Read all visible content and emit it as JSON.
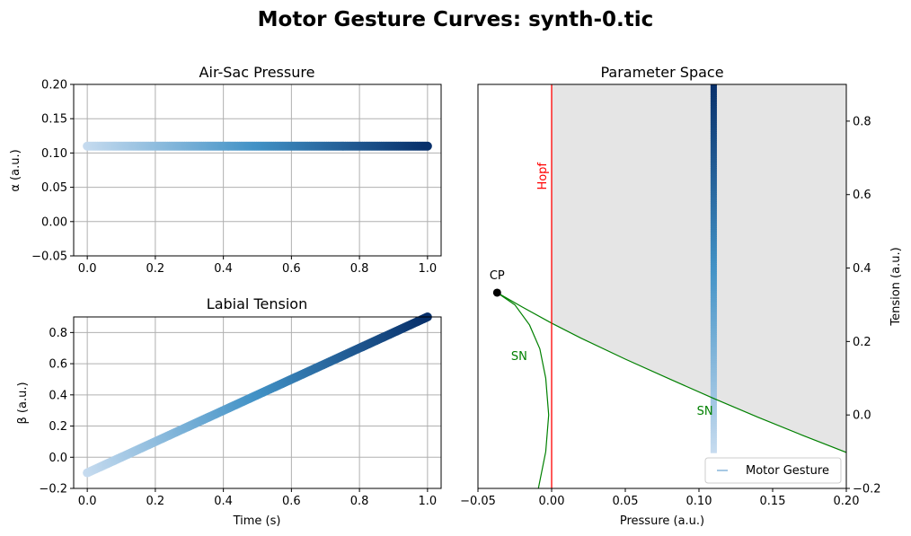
{
  "suptitle": "Motor Gesture Curves: synth-0.tic",
  "colors": {
    "grid": "#b0b0b0",
    "hopf": "#ff0000",
    "sn": "#008000",
    "region": "#e5e5e5",
    "cmap_start": "#c6dbef",
    "cmap_mid": "#4292c6",
    "cmap_end": "#08306b",
    "cp_point": "#000000",
    "legend_marker": "#a6c8e4"
  },
  "chart_data": [
    {
      "id": "air-sac",
      "type": "scatter",
      "title": "Air-Sac Pressure",
      "xlabel": "",
      "ylabel": "α (a.u.)",
      "xlim": [
        -0.04,
        1.04
      ],
      "ylim": [
        -0.05,
        0.2
      ],
      "xticks": [
        "0.0",
        "0.2",
        "0.4",
        "0.6",
        "0.8",
        "1.0"
      ],
      "yticks": [
        "−0.05",
        "0.00",
        "0.05",
        "0.10",
        "0.15",
        "0.20"
      ],
      "grid": true,
      "colormap": "Blues",
      "series": [
        {
          "x": [
            0,
            1
          ],
          "y": [
            0.11,
            0.11
          ],
          "n_points": 200
        }
      ]
    },
    {
      "id": "labial-tension",
      "type": "scatter",
      "title": "Labial Tension",
      "xlabel": "Time (s)",
      "ylabel": "β (a.u.)",
      "xlim": [
        -0.04,
        1.04
      ],
      "ylim": [
        -0.2,
        0.9
      ],
      "xticks": [
        "0.0",
        "0.2",
        "0.4",
        "0.6",
        "0.8",
        "1.0"
      ],
      "yticks": [
        "−0.2",
        "0.0",
        "0.2",
        "0.4",
        "0.6",
        "0.8"
      ],
      "grid": true,
      "colormap": "Blues",
      "series": [
        {
          "x": [
            0,
            1
          ],
          "y": [
            -0.1,
            0.9
          ],
          "n_points": 200
        }
      ]
    },
    {
      "id": "parameter-space",
      "type": "line",
      "title": "Parameter Space",
      "xlabel": "Pressure (a.u.)",
      "ylabel": "Tension (a.u.)",
      "xlim": [
        -0.05,
        0.2
      ],
      "ylim": [
        -0.2,
        0.9
      ],
      "xticks": [
        "−0.05",
        "0.00",
        "0.05",
        "0.10",
        "0.15",
        "0.20"
      ],
      "yticks": [
        "−0.2",
        "0.0",
        "0.2",
        "0.4",
        "0.6",
        "0.8"
      ],
      "yaxis_side": "right",
      "grid": false,
      "legend": {
        "label": "Motor Gesture",
        "position": "lower-right"
      },
      "hopf": {
        "x": 0,
        "label": "Hopf"
      },
      "cp": {
        "x": -0.037,
        "y": 0.333,
        "label": "CP"
      },
      "sn_label": "SN",
      "sn_upper": {
        "x": [
          -0.037,
          -0.02,
          0.0,
          0.02,
          0.05,
          0.08,
          0.11,
          0.14,
          0.17,
          0.2
        ],
        "y": [
          0.333,
          0.294,
          0.25,
          0.209,
          0.152,
          0.098,
          0.045,
          -0.006,
          -0.055,
          -0.102
        ]
      },
      "sn_lower": {
        "x": [
          -0.037,
          -0.025,
          -0.015,
          -0.008,
          -0.004,
          -0.002,
          -0.004,
          -0.009
        ],
        "y": [
          0.333,
          0.3,
          0.245,
          0.18,
          0.1,
          0.0,
          -0.1,
          -0.2
        ]
      },
      "gesture": {
        "x": 0.11,
        "y_start": -0.1,
        "y_end": 0.9,
        "n_points": 200
      }
    }
  ]
}
